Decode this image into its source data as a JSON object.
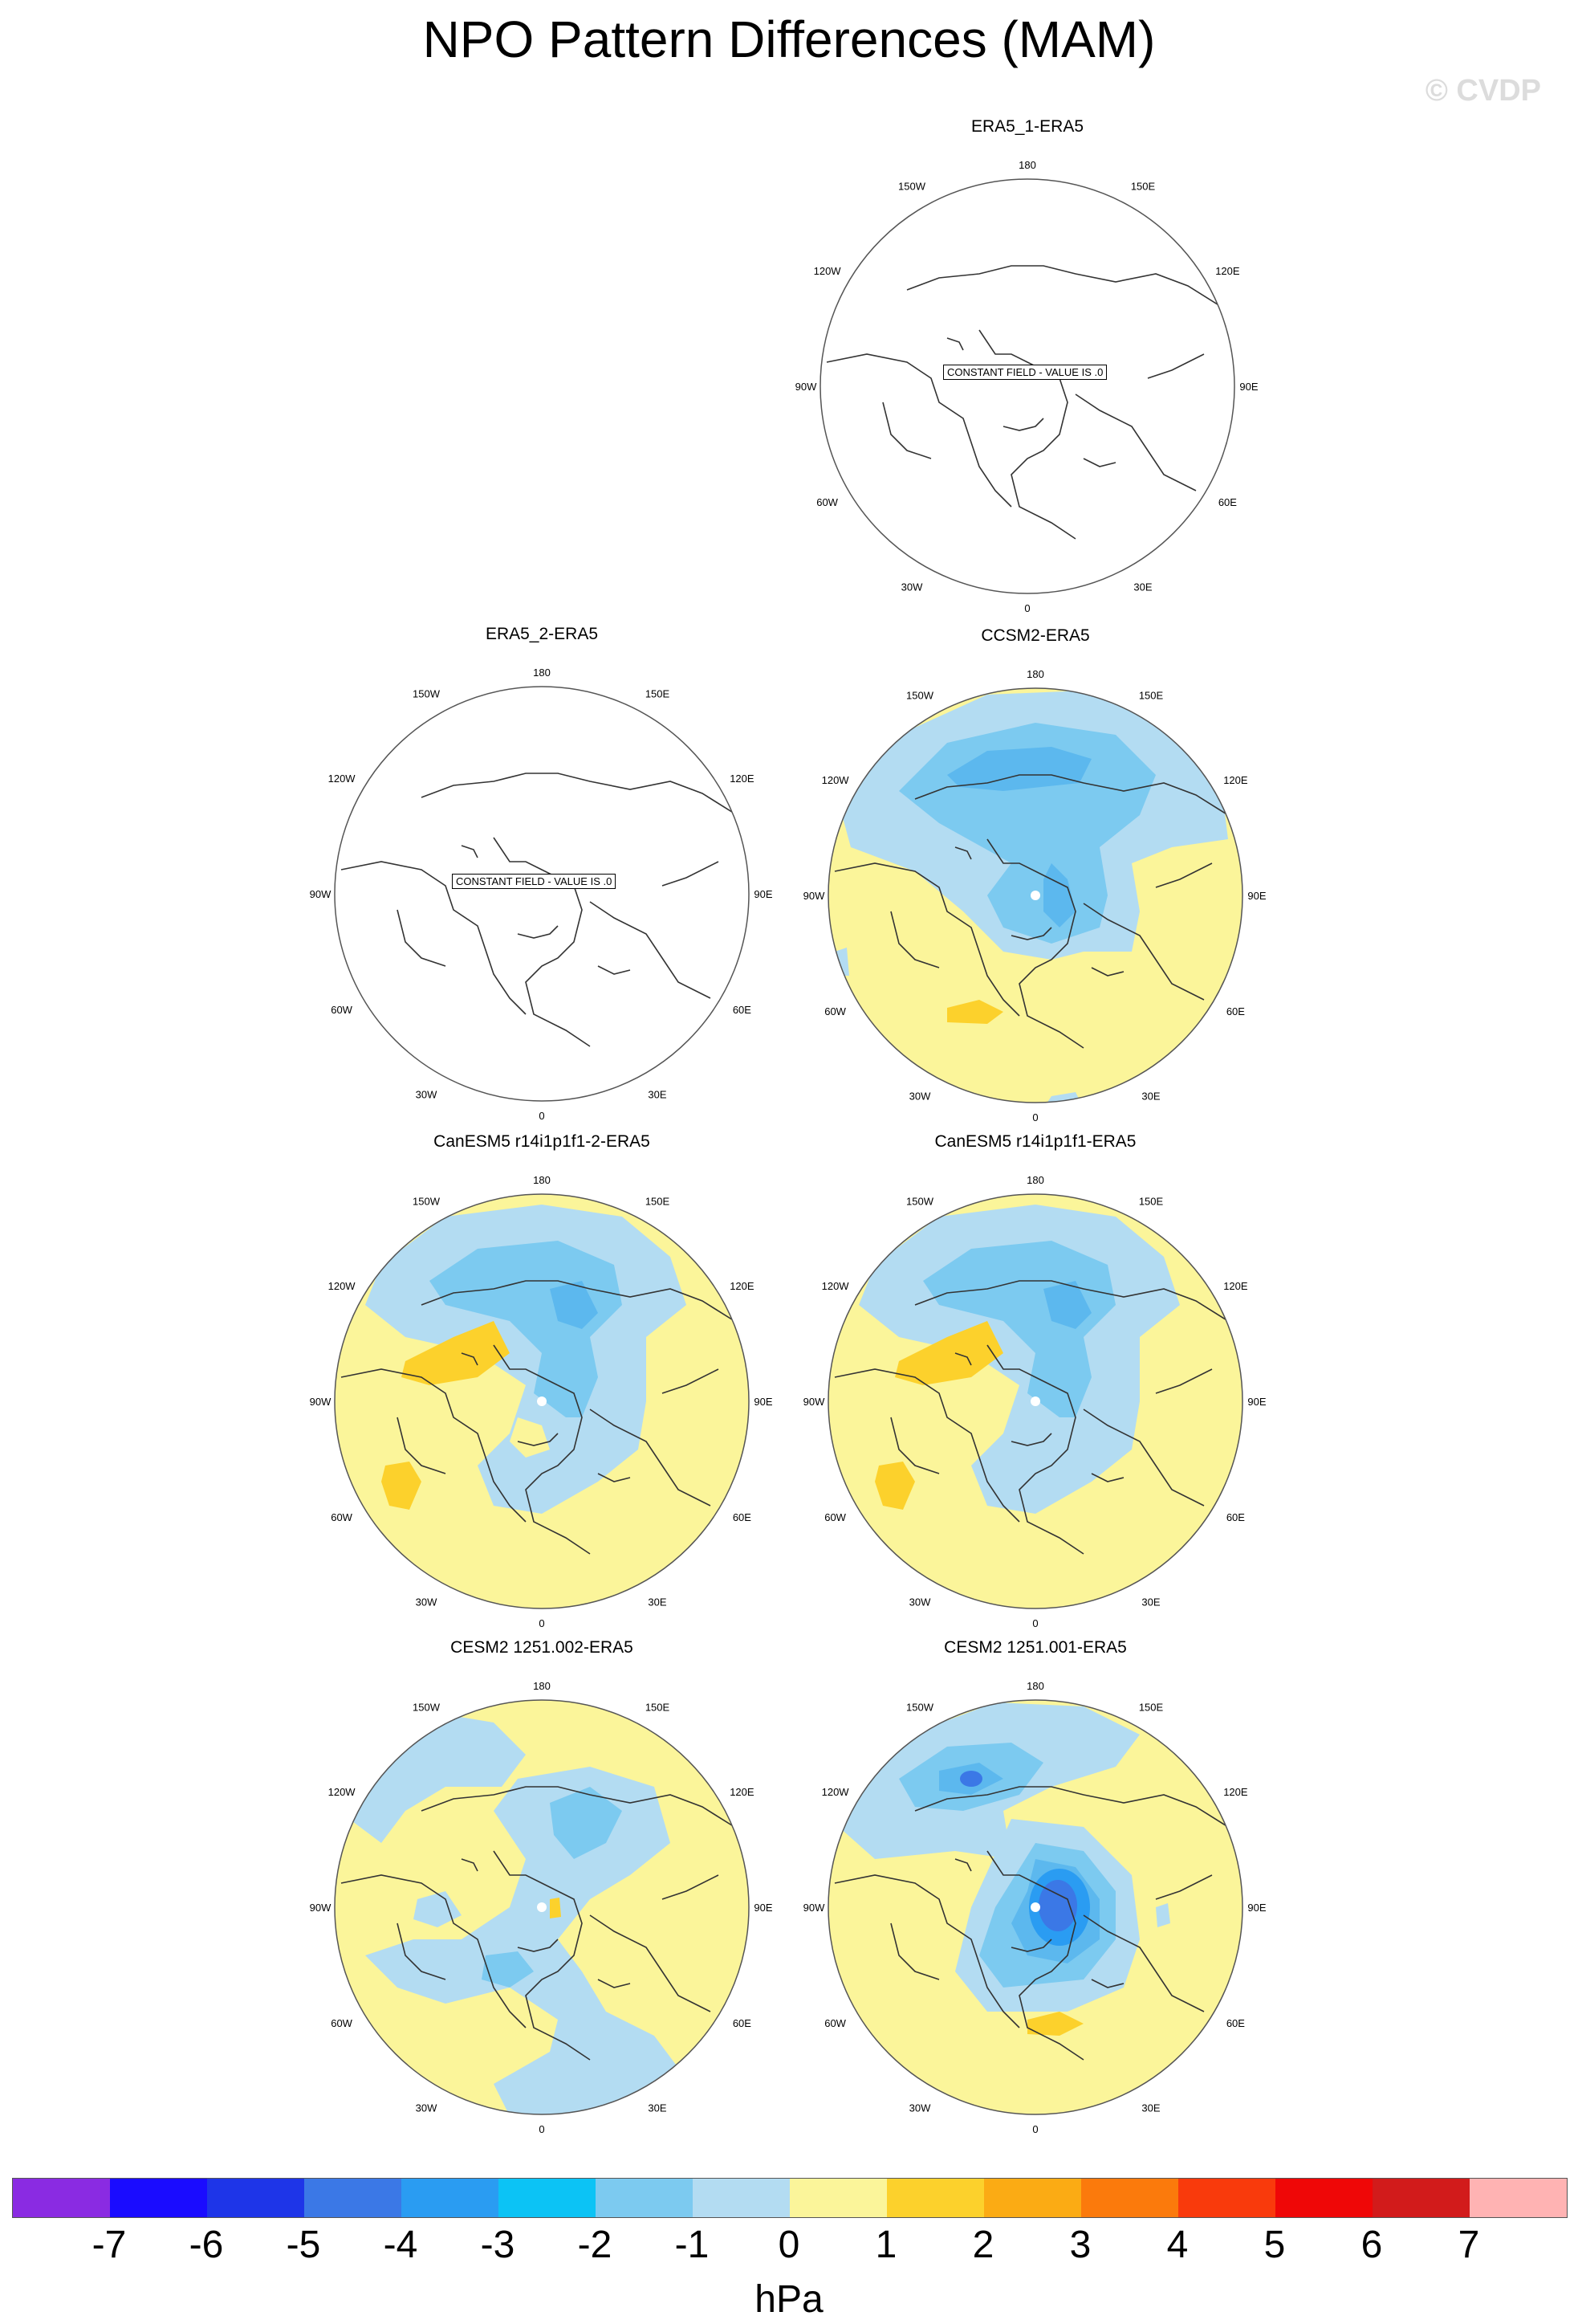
{
  "title": "NPO Pattern Differences (MAM)",
  "watermark": "© CVDP",
  "colors": {
    "pos1": "#fbf59a",
    "pos2": "#fcd12c",
    "neg1": "#b3dcf2",
    "neg2": "#7ccaf0",
    "neg3": "#5cb8ee",
    "neg4": "#2a9cf2",
    "neg5": "#3b78e6",
    "coast": "#333333"
  },
  "lon_labels": [
    "180",
    "150E",
    "120E",
    "90E",
    "60E",
    "30E",
    "0",
    "30W",
    "60W",
    "90W",
    "120W",
    "150W"
  ],
  "panels": [
    {
      "title": "ERA5_1-ERA5",
      "constant": true,
      "note": "CONSTANT FIELD - VALUE IS .0"
    },
    {
      "title": "ERA5_2-ERA5",
      "constant": true,
      "note": "CONSTANT FIELD - VALUE IS .0"
    },
    {
      "title": "CCSM2-ERA5",
      "constant": false
    },
    {
      "title": "CanESM5 r14i1p1f1-2-ERA5",
      "constant": false
    },
    {
      "title": "CanESM5 r14i1p1f1-ERA5",
      "constant": false
    },
    {
      "title": "CESM2 1251.002-ERA5",
      "constant": false
    },
    {
      "title": "CESM2 1251.001-ERA5",
      "constant": false
    }
  ],
  "chart_data": {
    "type": "heatmap",
    "title": "NPO Pattern Differences (MAM)",
    "projection": "polar stereographic, Northern Hemisphere",
    "field": "sea level pressure difference",
    "units": "hPa",
    "colorbar": {
      "ticks": [
        "-7",
        "-6",
        "-5",
        "-4",
        "-3",
        "-2",
        "-1",
        "0",
        "1",
        "2",
        "3",
        "4",
        "5",
        "6",
        "7"
      ],
      "colors": [
        "#8a2be2",
        "#1a0cff",
        "#1e35e8",
        "#3b78e6",
        "#2a9cf2",
        "#0cc3f5",
        "#7ccaf0",
        "#b3dcf2",
        "#fbf59a",
        "#fcd12c",
        "#fbab14",
        "#fb7a0c",
        "#f93a0c",
        "#ef0707",
        "#d21b1b",
        "#ffb3b3"
      ],
      "orientation": "horizontal",
      "position": "bottom"
    },
    "panels": [
      {
        "name": "ERA5_1-ERA5",
        "constant_value": 0
      },
      {
        "name": "ERA5_2-ERA5",
        "constant_value": 0
      },
      {
        "name": "CCSM2-ERA5",
        "min_level": -3,
        "max_level": 2
      },
      {
        "name": "CanESM5 r14i1p1f1-2-ERA5",
        "min_level": -3,
        "max_level": 2
      },
      {
        "name": "CanESM5 r14i1p1f1-ERA5",
        "min_level": -3,
        "max_level": 2
      },
      {
        "name": "CESM2 1251.002-ERA5",
        "min_level": -2,
        "max_level": 2
      },
      {
        "name": "CESM2 1251.001-ERA5",
        "min_level": -5,
        "max_level": 2
      }
    ]
  }
}
